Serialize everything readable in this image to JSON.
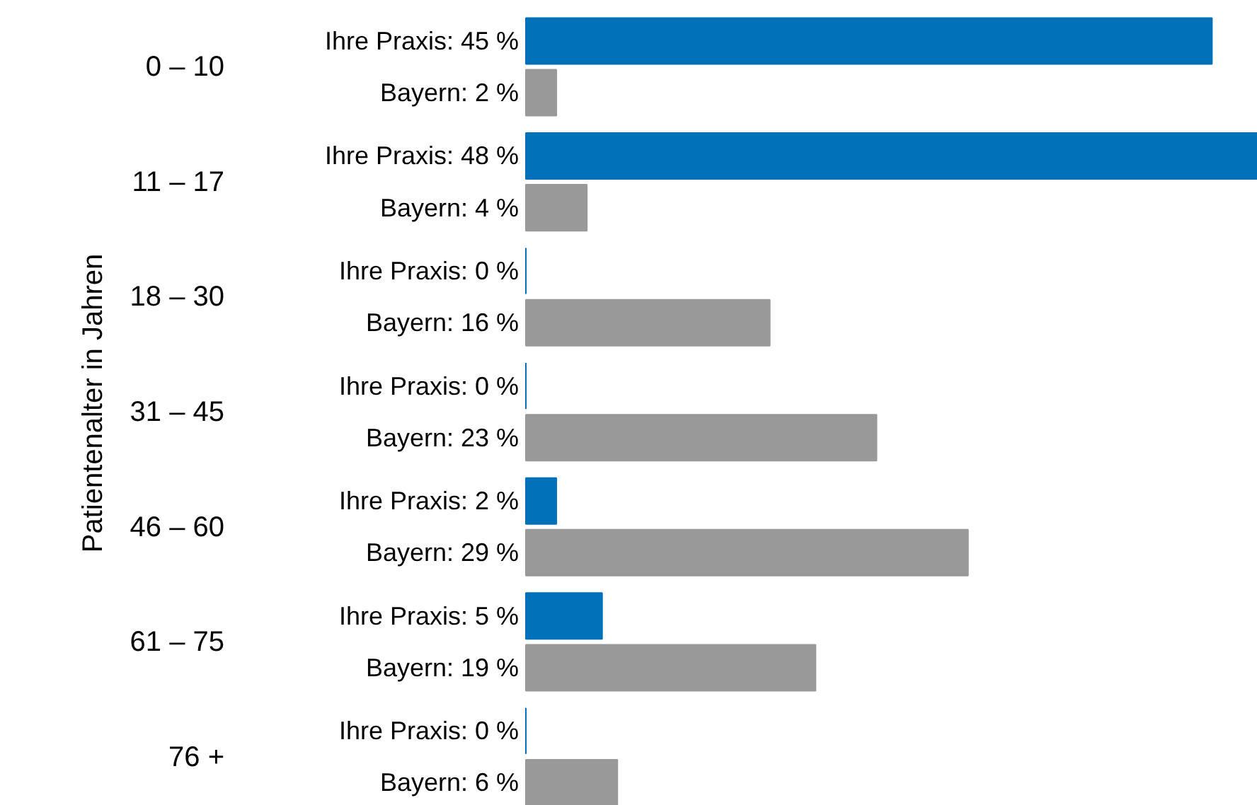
{
  "chart_data": {
    "type": "bar",
    "orientation": "horizontal",
    "ylabel": "Patientenalter in Jahren",
    "categories": [
      "0 – 10",
      "11 – 17",
      "18 – 30",
      "31 – 45",
      "46 – 60",
      "61 – 75",
      "76 +"
    ],
    "xlim": [
      0,
      48
    ],
    "series": [
      {
        "color": "#0070b8",
        "values": [
          45,
          48,
          0,
          0,
          2,
          5,
          0
        ],
        "value_labels": [
          "Ihre Praxis: 45 %",
          "Ihre Praxis: 48 %",
          "Ihre Praxis: 0 %",
          "Ihre Praxis: 0 %",
          "Ihre Praxis: 2 %",
          "Ihre Praxis: 5 %",
          "Ihre Praxis: 0 %"
        ]
      },
      {
        "color": "#999999",
        "values": [
          2,
          4,
          16,
          23,
          29,
          19,
          6
        ],
        "value_labels": [
          "Bayern: 2 %",
          "Bayern: 4 %",
          "Bayern: 16 %",
          "Bayern: 23 %",
          "Bayern: 29 %",
          "Bayern: 19 %",
          "Bayern: 6 %"
        ]
      }
    ]
  }
}
